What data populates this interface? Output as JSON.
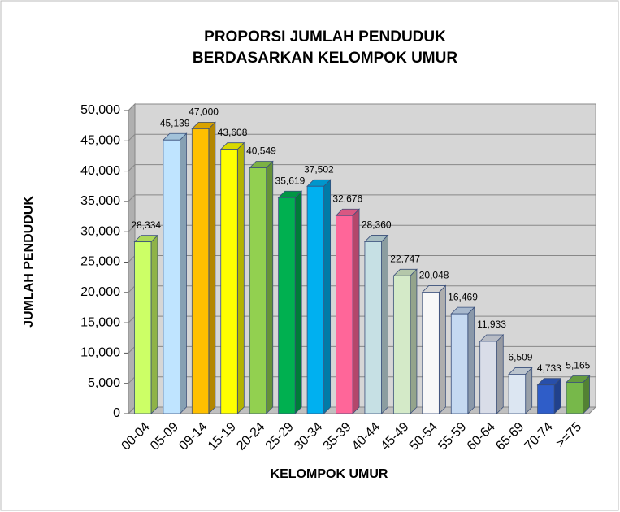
{
  "chart_data": {
    "type": "bar3d",
    "title": [
      "PROPORSI JUMLAH PENDUDUK",
      "BERDASARKAN KELOMPOK UMUR"
    ],
    "x_label": "KELOMPOK UMUR",
    "y_label": "JUMLAH PENDUDUK",
    "categories": [
      "00-04",
      "05-09",
      "09-14",
      "15-19",
      "20-24",
      "25-29",
      "30-34",
      "35-39",
      "40-44",
      "45-49",
      "50-54",
      "55-59",
      "60-64",
      "65-69",
      "70-74",
      ">=75"
    ],
    "values": [
      28334,
      45139,
      47000,
      43608,
      40549,
      35619,
      37502,
      32676,
      28360,
      22747,
      20048,
      16469,
      11933,
      6509,
      4733,
      5165
    ],
    "value_labels": [
      "28,334",
      "45,139",
      "47,000",
      "43,608",
      "40,549",
      "35,619",
      "37,502",
      "32,676",
      "28,360",
      "22,747",
      "20,048",
      "16,469",
      "11,933",
      "6,509",
      "4,733",
      "5,165"
    ],
    "colors": [
      "#ccff66",
      "#bfe4ff",
      "#ffc000",
      "#ffff00",
      "#92d050",
      "#00b050",
      "#00b0f0",
      "#ff6699",
      "#c6e0e4",
      "#d4eac8",
      "#f8f8f8",
      "#c5d9f1",
      "#d9dde8",
      "#dce6f2",
      "#2f5dc8",
      "#77b84a"
    ],
    "ylim": [
      0,
      50000
    ],
    "yticks": [
      0,
      {
        "value": 5000,
        "label": "5,000"
      },
      {
        "value": 10000,
        "label": "10,000"
      },
      {
        "value": 15000,
        "label": "15,000"
      },
      {
        "value": 20000,
        "label": "20,000"
      },
      {
        "value": 25000,
        "label": "25,000"
      },
      {
        "value": 30000,
        "label": "30,000"
      },
      {
        "value": 35000,
        "label": "35,000"
      },
      {
        "value": 40000,
        "label": "40,000"
      },
      {
        "value": 45000,
        "label": "45,000"
      },
      {
        "value": 50000,
        "label": "50,000"
      }
    ],
    "grid": true
  }
}
